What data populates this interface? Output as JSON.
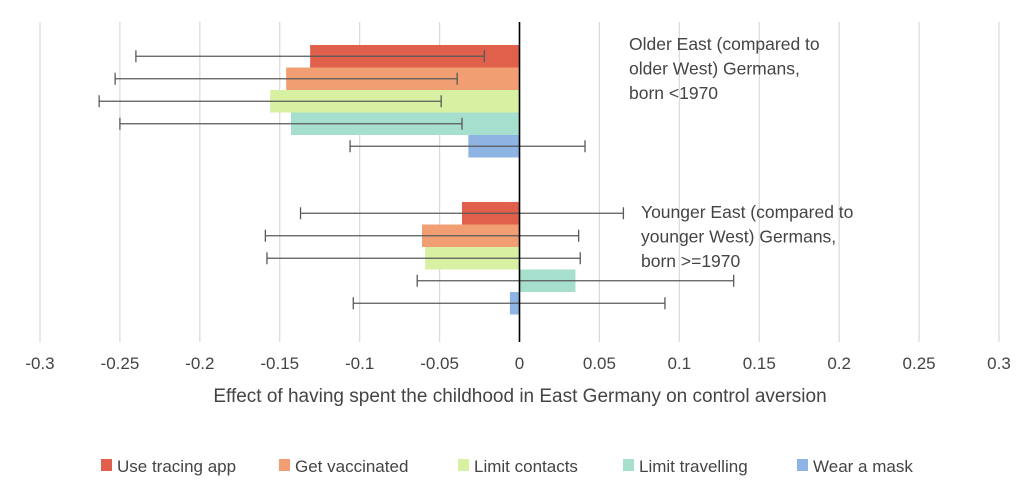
{
  "chart_data": {
    "type": "bar",
    "orientation": "horizontal",
    "xlabel": "Effect of having spent the childhood in East Germany on control aversion",
    "ylabel": "",
    "xlim": [
      -0.3,
      0.3
    ],
    "xticks": [
      -0.3,
      -0.25,
      -0.2,
      -0.15,
      -0.1,
      -0.05,
      0,
      0.05,
      0.1,
      0.15,
      0.2,
      0.25,
      0.3
    ],
    "xtick_labels": [
      "-0.3",
      "-0.25",
      "-0.2",
      "-0.15",
      "-0.1",
      "-0.05",
      "0",
      "0.05",
      "0.1",
      "0.15",
      "0.2",
      "0.25",
      "0.3"
    ],
    "grid": "vertical",
    "legend_position": "bottom",
    "groups": [
      {
        "annotation": [
          "Older East (compared to",
          "older West) Germans,",
          "born <1970"
        ],
        "bars": [
          {
            "series": "Use tracing app",
            "value": -0.131,
            "ci": [
              -0.24,
              -0.022
            ]
          },
          {
            "series": "Get vaccinated",
            "value": -0.146,
            "ci": [
              -0.253,
              -0.039
            ]
          },
          {
            "series": "Limit contacts",
            "value": -0.156,
            "ci": [
              -0.263,
              -0.049
            ]
          },
          {
            "series": "Limit travelling",
            "value": -0.143,
            "ci": [
              -0.25,
              -0.036
            ]
          },
          {
            "series": "Wear a mask",
            "value": -0.032,
            "ci": [
              -0.106,
              0.041
            ]
          }
        ]
      },
      {
        "annotation": [
          "Younger East (compared to",
          "younger West) Germans,",
          "born >=1970"
        ],
        "bars": [
          {
            "series": "Use tracing app",
            "value": -0.036,
            "ci": [
              -0.137,
              0.065
            ]
          },
          {
            "series": "Get vaccinated",
            "value": -0.061,
            "ci": [
              -0.159,
              0.037
            ]
          },
          {
            "series": "Limit contacts",
            "value": -0.059,
            "ci": [
              -0.158,
              0.038
            ]
          },
          {
            "series": "Limit travelling",
            "value": 0.035,
            "ci": [
              -0.064,
              0.134
            ]
          },
          {
            "series": "Wear a mask",
            "value": -0.006,
            "ci": [
              -0.104,
              0.091
            ]
          }
        ]
      }
    ],
    "series": [
      {
        "name": "Use tracing app",
        "color": "#e0604b"
      },
      {
        "name": "Get vaccinated",
        "color": "#f19f72"
      },
      {
        "name": "Limit contacts",
        "color": "#d8f0a2"
      },
      {
        "name": "Limit travelling",
        "color": "#a7dfce"
      },
      {
        "name": "Wear a mask",
        "color": "#8db4e2"
      }
    ],
    "colors": {
      "gridline": "#d9d9d9",
      "zero_axis": "#000000",
      "error_bar": "#595959",
      "text": "#444444"
    }
  }
}
